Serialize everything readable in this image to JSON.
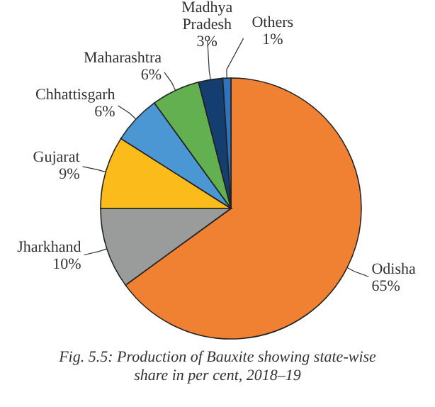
{
  "chart_data": {
    "type": "pie",
    "categories": [
      "Odisha",
      "Jharkhand",
      "Gujarat",
      "Chhattisgarh",
      "Maharashtra",
      "Madhya Pradesh",
      "Others"
    ],
    "values": [
      65,
      10,
      9,
      6,
      6,
      3,
      1
    ],
    "value_labels": [
      "65%",
      "10%",
      "9%",
      "6%",
      "6%",
      "3%",
      "1%"
    ],
    "colors": [
      "#f08132",
      "#9a9c9c",
      "#fbbb1a",
      "#4b97d3",
      "#62b04f",
      "#143d70",
      "#2f73bf"
    ],
    "legend": false,
    "annotations": [
      "Fig. 5.5: Production of Bauxite showing state-wise share in per cent, 2018–19"
    ]
  }
}
